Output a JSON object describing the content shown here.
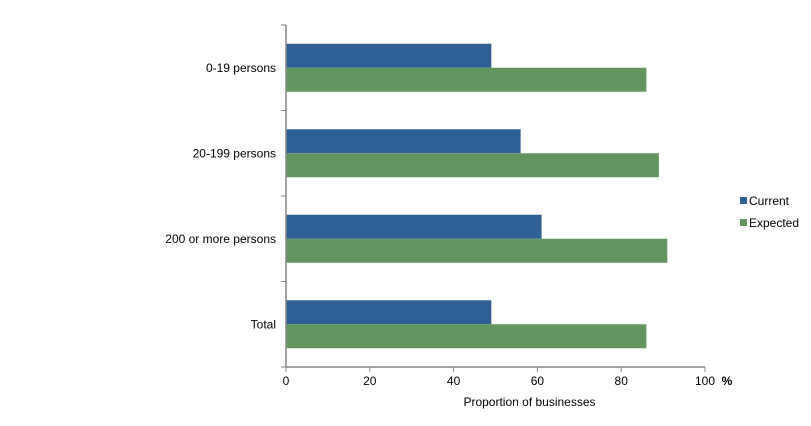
{
  "chart_data": {
    "type": "bar",
    "orientation": "horizontal",
    "title": "",
    "categories": [
      "0-19 persons",
      "20-199 persons",
      "200 or more persons",
      "Total"
    ],
    "series": [
      {
        "name": "Current",
        "color": "#2e6096",
        "values": [
          49,
          56,
          61,
          49
        ]
      },
      {
        "name": "Expected",
        "color": "#61975e",
        "values": [
          86,
          89,
          91,
          86
        ]
      }
    ],
    "xlabel": "Proportion of businesses",
    "x_unit": "%",
    "ylabel": "",
    "xlim": [
      0,
      100
    ],
    "xticks": [
      0,
      20,
      40,
      60,
      80,
      100
    ],
    "grid": false,
    "legend_position": "right"
  }
}
